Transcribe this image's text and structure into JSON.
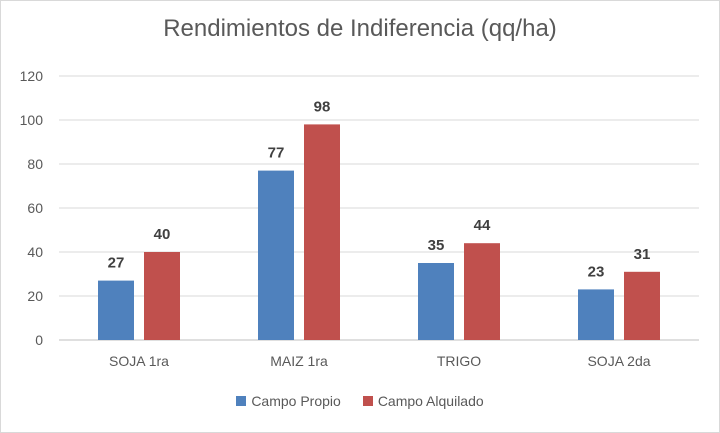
{
  "chart_data": {
    "type": "bar",
    "title": "Rendimientos de Indiferencia (qq/ha)",
    "categories": [
      "SOJA 1ra",
      "MAIZ 1ra",
      "TRIGO",
      "SOJA 2da"
    ],
    "series": [
      {
        "name": "Campo Propio",
        "color": "#4f81bd",
        "values": [
          27,
          77,
          35,
          23
        ]
      },
      {
        "name": "Campo Alquilado",
        "color": "#c0504d",
        "values": [
          40,
          98,
          44,
          31
        ]
      }
    ],
    "xlabel": "",
    "ylabel": "",
    "ylim": [
      0,
      120
    ],
    "yticks": [
      "0",
      "20",
      "40",
      "60",
      "80",
      "100",
      "120"
    ],
    "grid": true,
    "gridColor": "#d9d9d9",
    "legend_position": "bottom"
  }
}
